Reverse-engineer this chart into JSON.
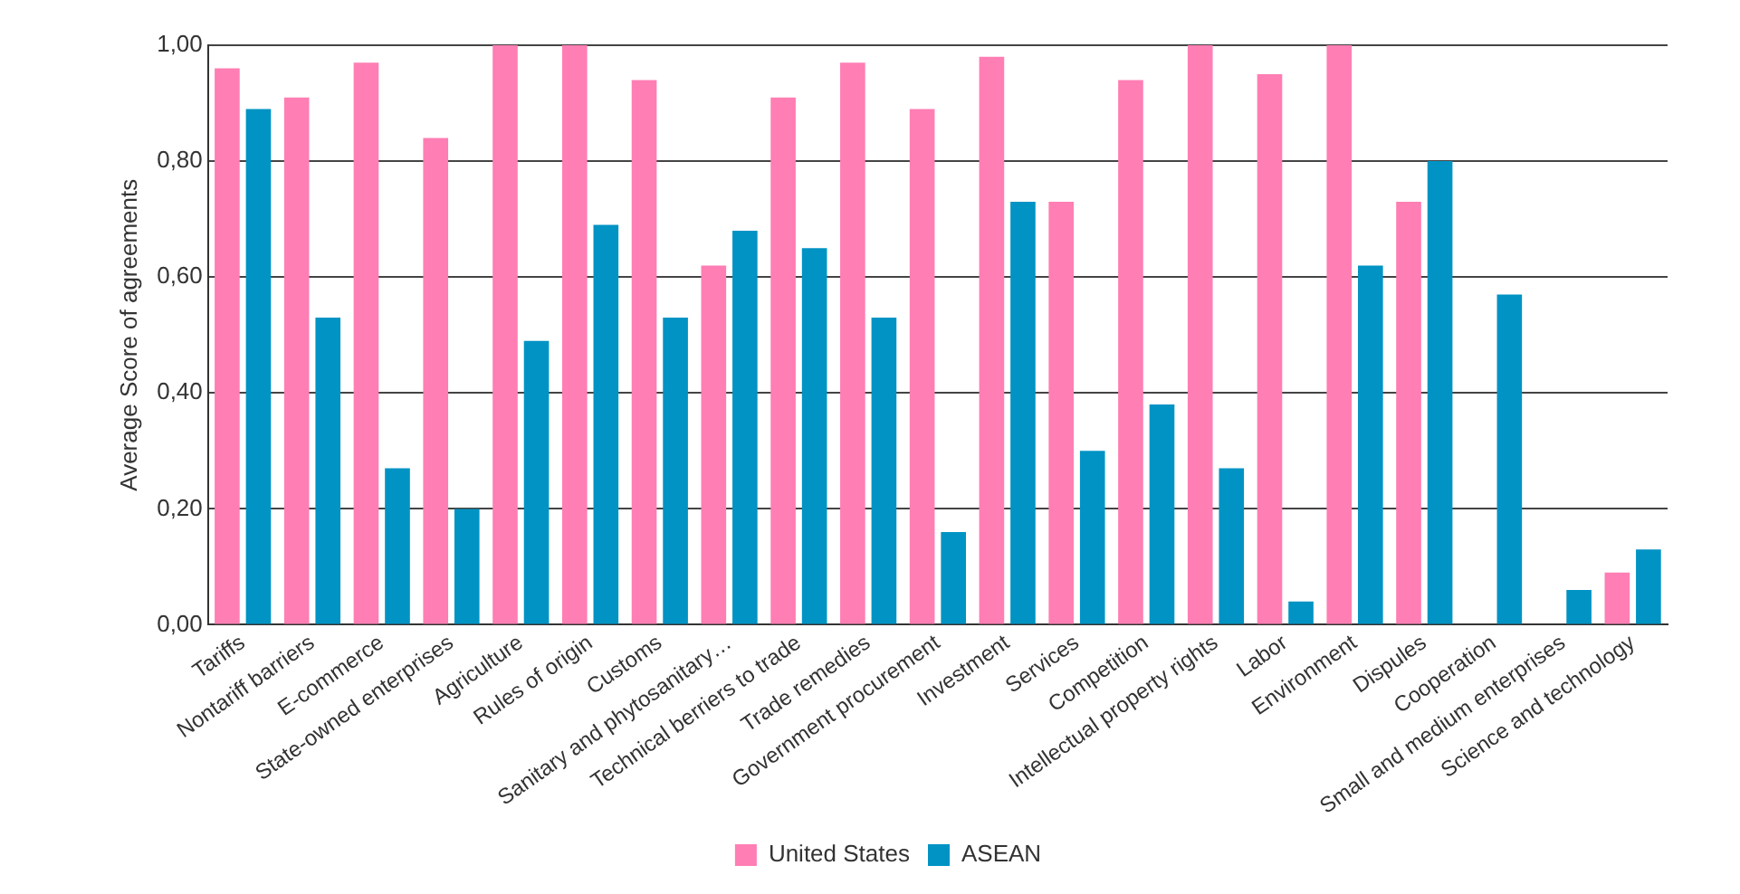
{
  "chart_data": {
    "type": "bar",
    "ylabel": "Average Score of agreements",
    "categories": [
      "Tariffs",
      "Nontariff barriers",
      "E-commerce",
      "State-owned enterprises",
      "Agriculture",
      "Rules of origin",
      "Customs",
      "Sanitary and phytosanitary…",
      "Technical berriers to trade",
      "Trade remedies",
      "Government procurement",
      "Investment",
      "Services",
      "Competition",
      "Intellectual property rights",
      "Labor",
      "Environment",
      "Dispules",
      "Cooperation",
      "Small and medium enterprises",
      "Science and technology"
    ],
    "series": [
      {
        "name": "United States",
        "color": "#ff7eb3",
        "values": [
          0.96,
          0.91,
          0.97,
          0.84,
          1.0,
          1.0,
          0.94,
          0.62,
          0.91,
          0.97,
          0.89,
          0.98,
          0.73,
          0.94,
          1.0,
          0.95,
          1.0,
          0.73,
          null,
          null,
          0.09
        ]
      },
      {
        "name": "ASEAN",
        "color": "#0093c4",
        "values": [
          0.89,
          0.53,
          0.27,
          0.2,
          0.49,
          0.69,
          0.53,
          0.68,
          0.65,
          0.53,
          0.16,
          0.73,
          0.3,
          0.38,
          0.27,
          0.04,
          0.62,
          0.8,
          0.57,
          0.06,
          0.13
        ]
      }
    ],
    "ylim": [
      0,
      1
    ],
    "yticks": [
      {
        "value": 0,
        "label": "0,00"
      },
      {
        "value": 0.2,
        "label": "0,20"
      },
      {
        "value": 0.4,
        "label": "0,40"
      },
      {
        "value": 0.6,
        "label": "0,60"
      },
      {
        "value": 0.8,
        "label": "0,80"
      },
      {
        "value": 1,
        "label": "1,00"
      }
    ],
    "grid": "y",
    "legend": "bottom"
  }
}
